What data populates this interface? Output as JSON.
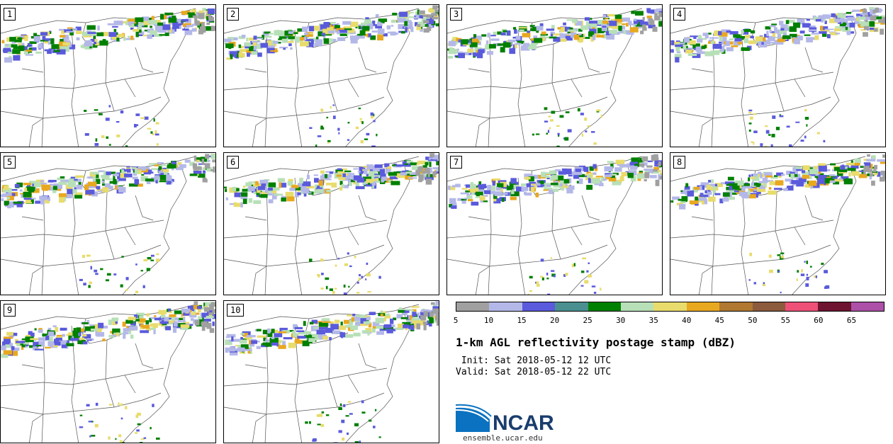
{
  "panels": [
    {
      "label": "1"
    },
    {
      "label": "2"
    },
    {
      "label": "3"
    },
    {
      "label": "4"
    },
    {
      "label": "5"
    },
    {
      "label": "6"
    },
    {
      "label": "7"
    },
    {
      "label": "8"
    },
    {
      "label": "9"
    },
    {
      "label": "10"
    }
  ],
  "colorbar": {
    "colors": [
      "#a0a0a0",
      "#b4b8e8",
      "#5a5adc",
      "#4a9090",
      "#008000",
      "#b8e0b8",
      "#e8dc6c",
      "#e8a820",
      "#b07830",
      "#8c5a3c",
      "#ee5078",
      "#6e1430",
      "#ac50a8"
    ],
    "ticks": [
      "5",
      "10",
      "15",
      "20",
      "25",
      "30",
      "35",
      "40",
      "45",
      "50",
      "55",
      "60",
      "65"
    ]
  },
  "title": "1-km AGL reflectivity postage stamp (dBZ)",
  "init": " Init: Sat 2018-05-12 12 UTC",
  "valid": "Valid: Sat 2018-05-12 22 UTC",
  "logo": {
    "text": "NCAR",
    "url": "ensemble.ucar.edu",
    "color": "#1a3d6e",
    "accent": "#0a72c0"
  }
}
